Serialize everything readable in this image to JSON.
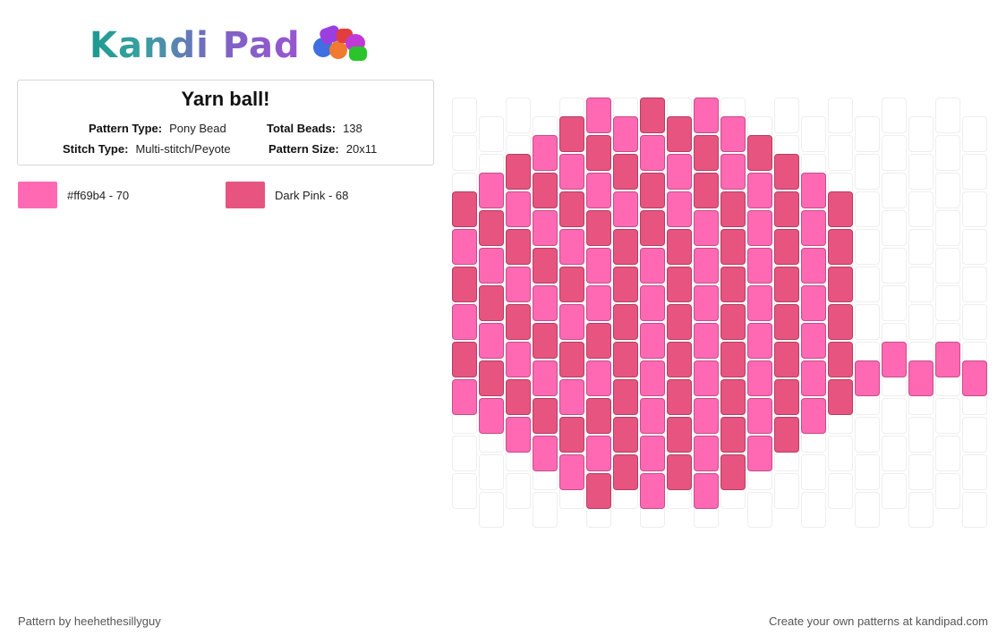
{
  "logo": {
    "text": "Kandi Pad"
  },
  "pattern": {
    "title": "Yarn ball!",
    "pattern_type_label": "Pattern Type:",
    "pattern_type": "Pony Bead",
    "total_beads_label": "Total Beads:",
    "total_beads": "138",
    "stitch_type_label": "Stitch Type:",
    "stitch_type": "Multi-stitch/Peyote",
    "pattern_size_label": "Pattern Size:",
    "pattern_size": "20x11"
  },
  "colors": {
    "light": "#ff69b4",
    "dark": "#e75480"
  },
  "legend": [
    {
      "label": "#ff69b4 - 70",
      "color": "#ff69b4"
    },
    {
      "label": "Dark Pink - 68",
      "color": "#e75480"
    }
  ],
  "grid": {
    "columns": 20,
    "rows": [
      "..........",
      ".....2.1.2..........",
      "...1.1.2.1.2.1......",
      "..1.1.1.1.1.1.2.....",
      ".2.2.2.2.2.2.2.1....",
      "2.1.2.1.1.1.2.2.2...",
      "2.1.2.1.2.2.2.2.2...",
      "1.2.1.2.1.2.1.2.1...",
      "2.1.2.1.2.2.2.2.2...",
      "1.2.1.2.1.2.1.2.1...",
      "2.1.2.1.2.2.2.2.2...",
      "1.2.1.2.1.2.1.2.1...",
      "2.1.2.1.2.2.2.2.2.1.",
      "1.2.1.2.1.2.1.2.1.1.",
      "..1.2.1.2.2.2.2.2.1.",
      "...2.1.2.1.2.1.2....",
      "...1.2.1.2.2.2.2....",
      "....2.1.2.1.2.......",
      "..........",
      ".........",
      "..........",
      "..........",
      ".........."
    ]
  },
  "footer": {
    "left": "Pattern by heehethesillyguy",
    "right": "Create your own patterns at kandipad.com"
  }
}
